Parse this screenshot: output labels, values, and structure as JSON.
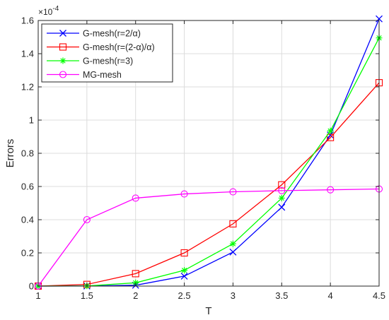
{
  "chart_data": {
    "type": "line",
    "title": "",
    "xlabel": "T",
    "ylabel": "Errors",
    "x": [
      1,
      1.5,
      2,
      2.5,
      3,
      3.5,
      4,
      4.5
    ],
    "xlim": [
      1,
      4.5
    ],
    "ylim": [
      0,
      1.6
    ],
    "y_exponent_label": "×10",
    "y_exponent_power": "-4",
    "x_ticks": [
      1,
      1.5,
      2,
      2.5,
      3,
      3.5,
      4,
      4.5
    ],
    "x_tick_labels": [
      "1",
      "1.5",
      "2",
      "2.5",
      "3",
      "3.5",
      "4",
      "4.5"
    ],
    "y_ticks": [
      0,
      0.2,
      0.4,
      0.6,
      0.8,
      1.0,
      1.2,
      1.4,
      1.6
    ],
    "y_tick_labels": [
      "0",
      "0.2",
      "0.4",
      "0.6",
      "0.8",
      "1",
      "1.2",
      "1.4",
      "1.6"
    ],
    "grid": true,
    "legend_position": "top-left",
    "series": [
      {
        "name": "G-mesh(r=2/α)",
        "color": "#0000ff",
        "marker": "x",
        "values": [
          0,
          0.0005,
          0.005,
          0.06,
          0.205,
          0.475,
          0.91,
          1.61
        ]
      },
      {
        "name": "G-mesh(r=(2-α)/α)",
        "color": "#ff0000",
        "marker": "square",
        "values": [
          0,
          0.01,
          0.075,
          0.2,
          0.375,
          0.61,
          0.895,
          1.225
        ]
      },
      {
        "name": "G-mesh(r=3)",
        "color": "#00ff00",
        "marker": "star",
        "values": [
          0,
          0.001,
          0.02,
          0.095,
          0.255,
          0.53,
          0.935,
          1.495
        ]
      },
      {
        "name": "MG-mesh",
        "color": "#ff00ff",
        "marker": "circle",
        "values": [
          0,
          0.4,
          0.53,
          0.555,
          0.568,
          0.575,
          0.58,
          0.585
        ]
      }
    ]
  }
}
